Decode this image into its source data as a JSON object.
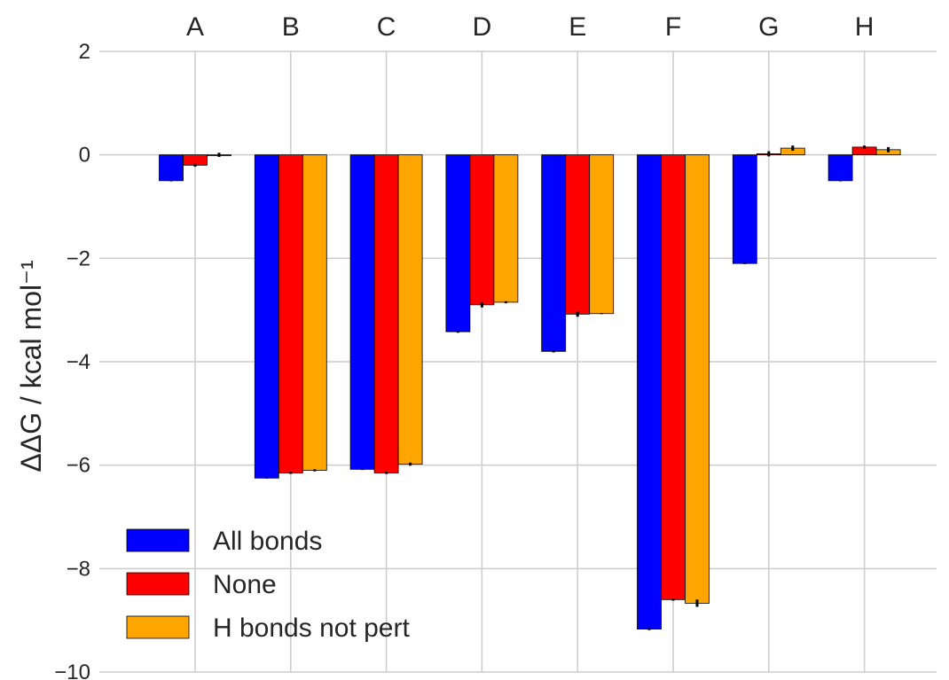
{
  "chart_data": {
    "type": "bar",
    "categories": [
      "A",
      "B",
      "C",
      "D",
      "E",
      "F",
      "G",
      "H"
    ],
    "series": [
      {
        "name": "All bonds",
        "color": "#0000ff",
        "values": [
          -0.5,
          -6.25,
          -6.08,
          -3.42,
          -3.8,
          -9.17,
          -2.1,
          -0.5
        ],
        "errors": [
          0,
          0.01,
          0,
          0.02,
          0.02,
          0.02,
          0,
          0
        ]
      },
      {
        "name": "None",
        "color": "#ff0000",
        "values": [
          -0.2,
          -6.15,
          -6.15,
          -2.9,
          -3.08,
          -8.6,
          0.02,
          0.15
        ],
        "errors": [
          0.03,
          0.02,
          0.02,
          0.05,
          0.05,
          0.02,
          0.05,
          0.03
        ]
      },
      {
        "name": "H bonds not pert",
        "color": "#ffa500",
        "values": [
          0,
          -6.1,
          -5.98,
          -2.85,
          -3.07,
          -8.67,
          0.13,
          0.1
        ],
        "errors": [
          0.04,
          0.02,
          0.03,
          0.02,
          0.01,
          0.07,
          0.05,
          0.05
        ]
      }
    ],
    "ylabel": "ΔΔG / kcal mol⁻¹",
    "ylim": [
      -10,
      2
    ],
    "yticks": [
      2,
      0,
      -2,
      -4,
      -6,
      -8,
      -10
    ],
    "ytick_labels": [
      "2",
      "0",
      "−2",
      "−4",
      "−6",
      "−8",
      "−10"
    ],
    "category_axis": "top",
    "grid": true,
    "legend_position": "lower-left"
  }
}
